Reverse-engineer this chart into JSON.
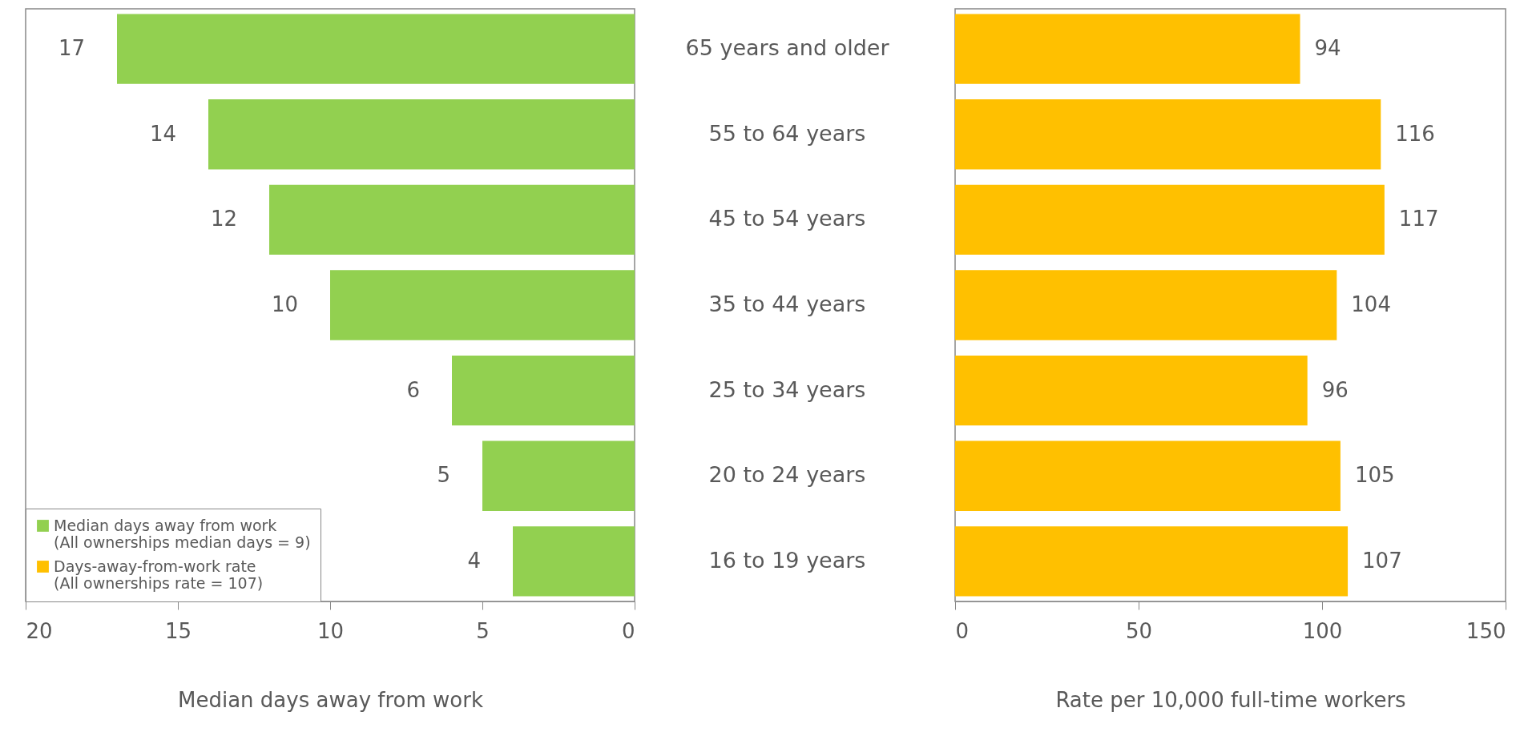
{
  "chart_data": [
    {
      "type": "bar",
      "orientation": "horizontal",
      "xlabel": "Median days away from work",
      "categories": [
        "65 years and older",
        "55 to 64 years",
        "45 to 54 years",
        "35 to 44 years",
        "25 to 34 years",
        "20 to 24 years",
        "16 to 19 years"
      ],
      "series": [
        {
          "name": "Median days away from work\n(All ownerships median days = 9)",
          "color": "#92d050",
          "values": [
            17,
            14,
            12,
            10,
            6,
            5,
            4
          ]
        }
      ],
      "xlim": [
        20,
        0
      ],
      "xticks": [
        20,
        15,
        10,
        5,
        0
      ],
      "data_labels": true,
      "legend": "bottom left",
      "grid": false
    },
    {
      "type": "bar",
      "orientation": "horizontal",
      "xlabel": "Rate per 10,000 full-time workers",
      "categories": [
        null,
        null,
        null,
        null,
        null,
        null,
        null
      ],
      "series": [
        {
          "name": "Days-away-from-work rate\n(All ownerships rate = 107)",
          "color": "#ffc000",
          "values": [
            94,
            116,
            117,
            104,
            96,
            105,
            107
          ]
        }
      ],
      "xlim": [
        0,
        150
      ],
      "xticks": [
        0,
        50,
        100,
        150
      ],
      "data_labels": true,
      "tick_labels": "x",
      "grid": false
    }
  ]
}
